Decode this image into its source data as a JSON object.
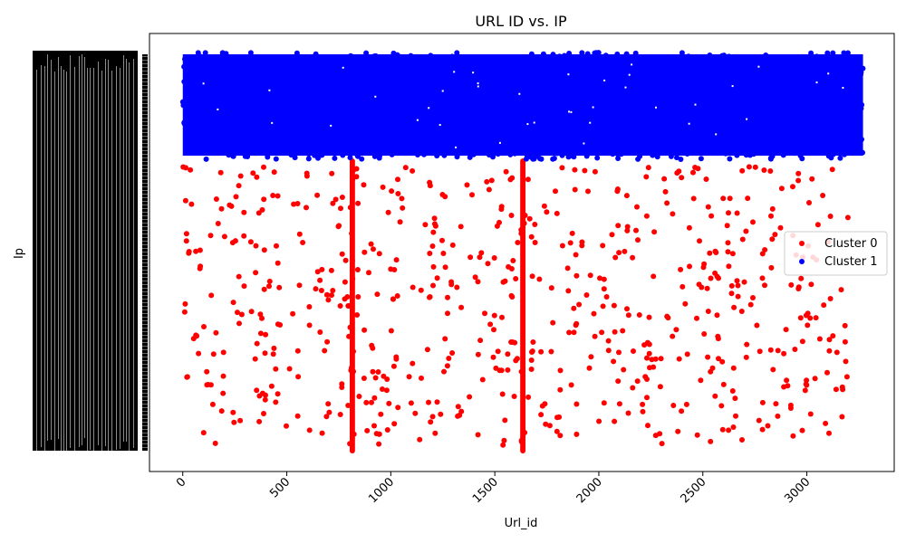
{
  "chart_data": {
    "type": "scatter",
    "title": "URL ID vs. IP",
    "xlabel": "Url_id",
    "ylabel": "Ip",
    "xlim": [
      -160,
      3420
    ],
    "x_ticks": [
      0,
      500,
      1000,
      1500,
      2000,
      2500,
      3000
    ],
    "x_tick_labels": [
      "0",
      "500",
      "1000",
      "1500",
      "2000",
      "2500",
      "3000"
    ],
    "y_ticks_note": "dense overlapping categorical tick labels (unreadable)",
    "legend_position": "center-right",
    "series": [
      {
        "name": "Cluster 0",
        "color": "#ff0000",
        "description_data": {
          "vertical_bands_x": [
            815,
            1635
          ],
          "scattered_x_range": [
            0,
            3200
          ],
          "y_band": "lower region (below Cluster 1)"
        }
      },
      {
        "name": "Cluster 1",
        "color": "#0000ff",
        "description_data": {
          "dense_x_range": [
            0,
            3270
          ],
          "y_band": "upper region"
        }
      }
    ]
  }
}
